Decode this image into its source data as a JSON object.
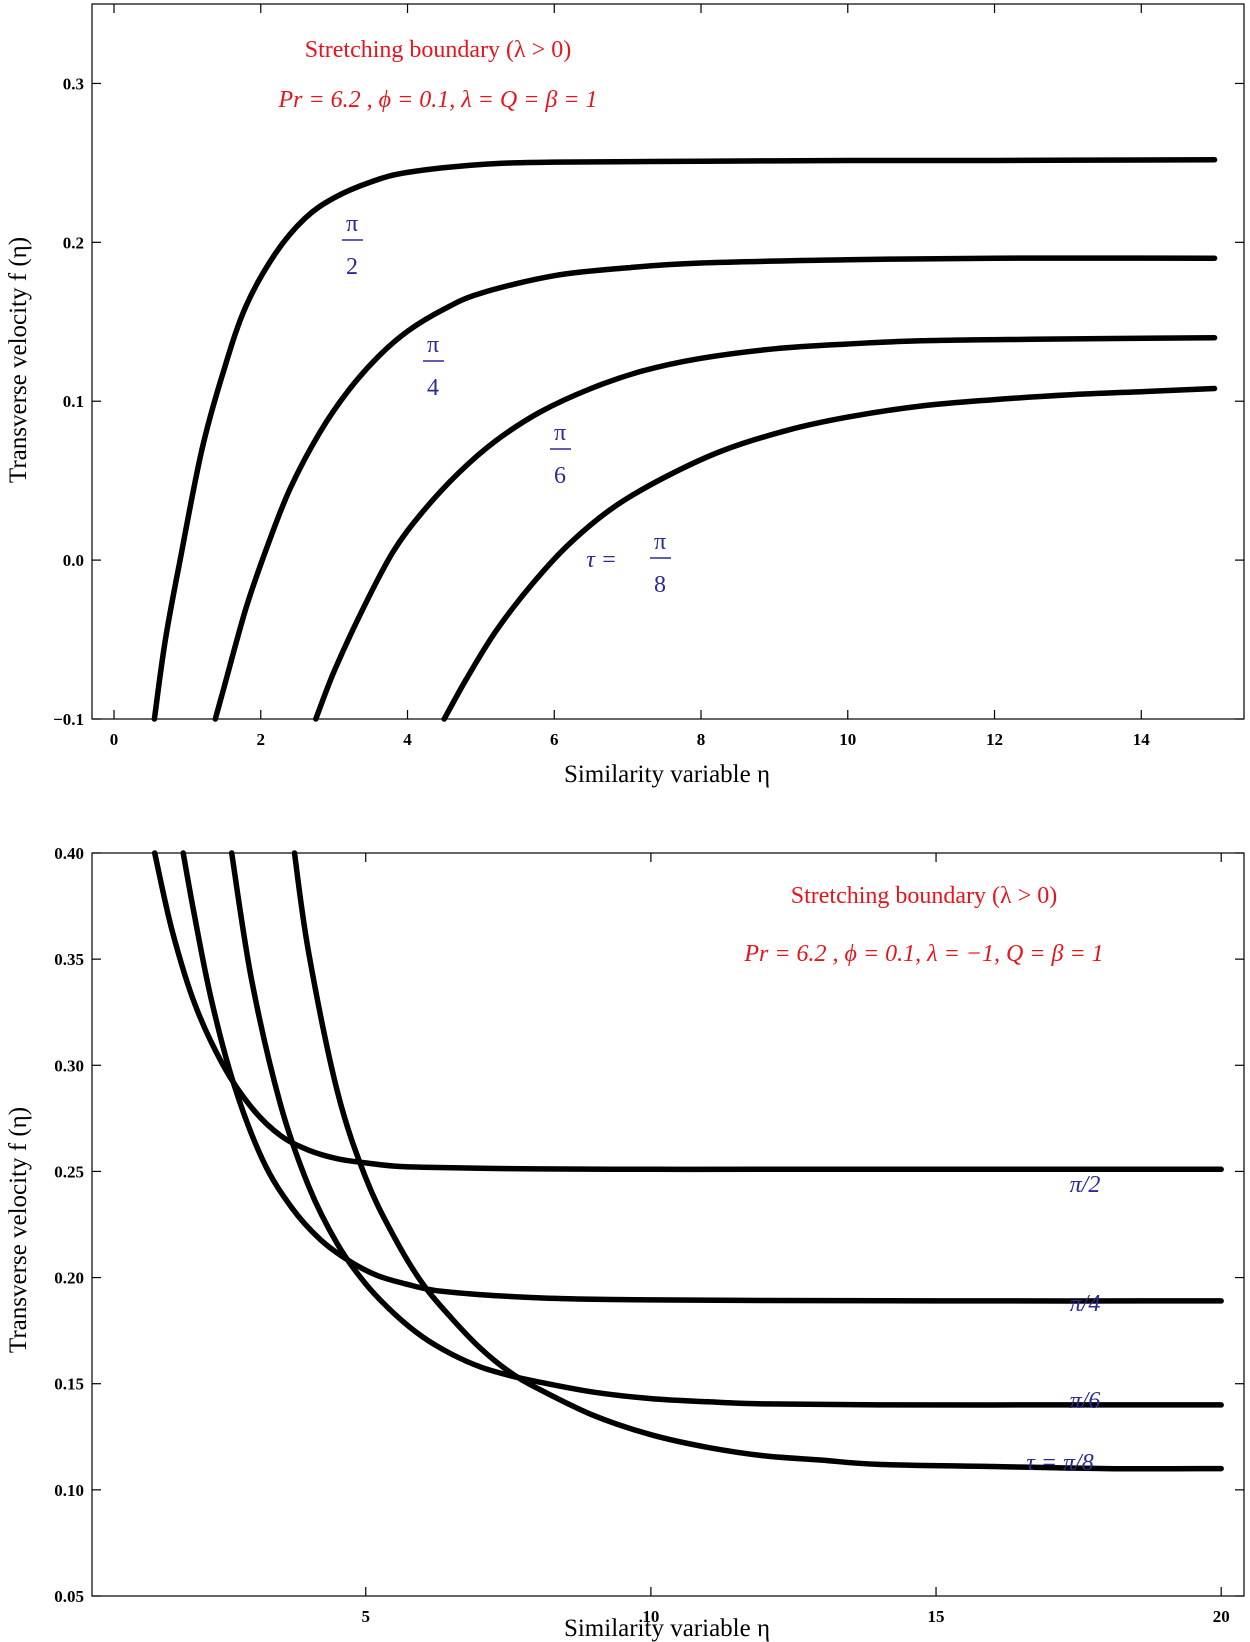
{
  "chart_data": [
    {
      "type": "line",
      "xlabel": "Similarity variable η",
      "ylabel": "Transverse velocity f (η)",
      "xlim": [
        -0.3,
        15.4
      ],
      "ylim": [
        -0.1,
        0.35
      ],
      "xticks": [
        0,
        2,
        4,
        6,
        8,
        10,
        12,
        14
      ],
      "xtick_labels": [
        "0",
        "2",
        "4",
        "6",
        "8",
        "10",
        "12",
        "14"
      ],
      "yticks": [
        -0.1,
        0.0,
        0.1,
        0.2,
        0.3
      ],
      "ytick_labels": [
        "−0.1",
        "0.0",
        "0.1",
        "0.2",
        "0.3"
      ],
      "annotations": [
        "Stretching boundary (λ > 0)",
        "Pr = 6.2 , ϕ = 0.1, λ = Q = β = 1"
      ],
      "series": [
        {
          "label_text": "π/2",
          "label_num": "π",
          "label_den": "2",
          "label_prefix": "",
          "x": [
            0.55,
            0.7,
            0.9,
            1.2,
            1.5,
            1.8,
            2.2,
            2.6,
            3.0,
            3.5,
            4.0,
            5.0,
            6.0,
            8.0,
            10.0,
            12.0,
            15.0
          ],
          "y": [
            -0.1,
            -0.05,
            0.0,
            0.07,
            0.12,
            0.16,
            0.193,
            0.215,
            0.228,
            0.238,
            0.244,
            0.249,
            0.2505,
            0.251,
            0.2515,
            0.2515,
            0.252
          ]
        },
        {
          "label_text": "π/4",
          "label_num": "π",
          "label_den": "4",
          "label_prefix": "",
          "x": [
            1.38,
            1.5,
            1.8,
            2.1,
            2.4,
            2.8,
            3.2,
            3.6,
            4.0,
            4.5,
            5.0,
            6.0,
            7.0,
            8.0,
            10.0,
            12.0,
            15.0
          ],
          "y": [
            -0.1,
            -0.08,
            -0.03,
            0.01,
            0.045,
            0.08,
            0.107,
            0.128,
            0.144,
            0.158,
            0.168,
            0.179,
            0.184,
            0.187,
            0.189,
            0.19,
            0.19
          ]
        },
        {
          "label_text": "π/6",
          "label_num": "π",
          "label_den": "6",
          "label_prefix": "",
          "x": [
            2.75,
            3.0,
            3.4,
            3.8,
            4.2,
            4.7,
            5.2,
            5.8,
            6.5,
            7.2,
            8.0,
            9.0,
            10.0,
            11.0,
            12.5,
            15.0
          ],
          "y": [
            -0.1,
            -0.07,
            -0.03,
            0.005,
            0.03,
            0.055,
            0.075,
            0.093,
            0.108,
            0.119,
            0.127,
            0.133,
            0.136,
            0.138,
            0.139,
            0.14
          ]
        },
        {
          "label_text": "τ = π/8",
          "label_num": "π",
          "label_den": "8",
          "label_prefix": "τ =",
          "x": [
            4.5,
            4.8,
            5.2,
            5.7,
            6.2,
            6.8,
            7.5,
            8.3,
            9.2,
            10.0,
            11.0,
            12.0,
            13.0,
            14.0,
            15.0
          ],
          "y": [
            -0.1,
            -0.075,
            -0.045,
            -0.015,
            0.01,
            0.033,
            0.052,
            0.069,
            0.082,
            0.09,
            0.097,
            0.101,
            0.104,
            0.106,
            0.108
          ]
        }
      ]
    },
    {
      "type": "line",
      "xlabel": "Similarity variable η",
      "ylabel": "Transverse velocity f (η)",
      "xlim": [
        0.2,
        20.4
      ],
      "ylim": [
        0.05,
        0.4
      ],
      "xticks": [
        5,
        10,
        15,
        20
      ],
      "xtick_labels": [
        "5",
        "10",
        "15",
        "20"
      ],
      "yticks": [
        0.05,
        0.1,
        0.15,
        0.2,
        0.25,
        0.3,
        0.35,
        0.4
      ],
      "ytick_labels": [
        "0.05",
        "0.10",
        "0.15",
        "0.20",
        "0.25",
        "0.30",
        "0.35",
        "0.40"
      ],
      "annotations": [
        "Stretching boundary (λ > 0)",
        "Pr = 6.2 , ϕ = 0.1, λ = −1, Q = β = 1"
      ],
      "series": [
        {
          "label_text": "π/2",
          "x": [
            1.3,
            1.6,
            2.0,
            2.5,
            3.0,
            3.5,
            4.0,
            4.5,
            5.0,
            5.5,
            6.0,
            7.0,
            8.0,
            10.0,
            12.0,
            15.0,
            20.0
          ],
          "y": [
            0.4,
            0.364,
            0.329,
            0.3,
            0.28,
            0.267,
            0.26,
            0.256,
            0.254,
            0.2525,
            0.252,
            0.2515,
            0.2512,
            0.251,
            0.251,
            0.251,
            0.251
          ]
        },
        {
          "label_text": "π/4",
          "x": [
            1.8,
            2.0,
            2.3,
            2.7,
            3.2,
            3.7,
            4.2,
            4.7,
            5.2,
            5.7,
            6.2,
            7.0,
            8.0,
            9.0,
            10.0,
            12.0,
            15.0,
            20.0
          ],
          "y": [
            0.4,
            0.37,
            0.33,
            0.29,
            0.255,
            0.233,
            0.218,
            0.208,
            0.201,
            0.197,
            0.194,
            0.192,
            0.1905,
            0.1898,
            0.1895,
            0.1892,
            0.189,
            0.189
          ]
        },
        {
          "label_text": "π/6",
          "x": [
            2.65,
            3.0,
            3.5,
            4.0,
            4.5,
            5.0,
            5.5,
            6.0,
            6.5,
            7.0,
            7.5,
            8.0,
            9.0,
            10.0,
            11.0,
            12.0,
            14.0,
            17.0,
            20.0
          ],
          "y": [
            0.4,
            0.34,
            0.282,
            0.243,
            0.216,
            0.197,
            0.183,
            0.172,
            0.164,
            0.158,
            0.154,
            0.151,
            0.146,
            0.143,
            0.1415,
            0.1405,
            0.14,
            0.14,
            0.14
          ]
        },
        {
          "label_text": "τ = π/8",
          "x": [
            3.75,
            4.0,
            4.5,
            5.0,
            5.5,
            6.0,
            6.5,
            7.0,
            7.5,
            8.0,
            9.0,
            10.0,
            11.0,
            12.0,
            13.0,
            14.0,
            16.0,
            18.0,
            20.0
          ],
          "y": [
            0.4,
            0.353,
            0.288,
            0.247,
            0.219,
            0.197,
            0.181,
            0.167,
            0.156,
            0.148,
            0.135,
            0.126,
            0.12,
            0.116,
            0.114,
            0.112,
            0.111,
            0.11,
            0.11
          ]
        }
      ]
    }
  ]
}
